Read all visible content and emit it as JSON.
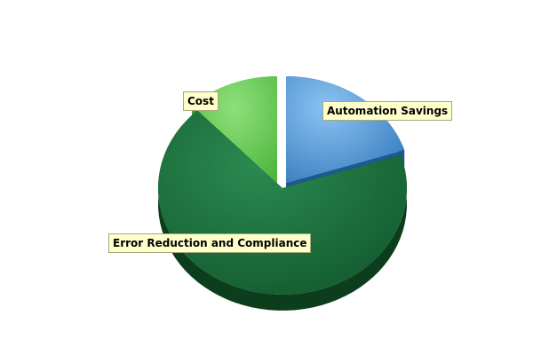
{
  "chart_data": {
    "type": "pie",
    "three_d": true,
    "exploded": true,
    "legend": "none",
    "slices": [
      {
        "label": "Automation Savings",
        "value": 20,
        "color": "#5b9bd5"
      },
      {
        "label": "Error Reduction and Compliance",
        "value": 68,
        "color": "#1d6b3c"
      },
      {
        "label": "Cost",
        "value": 12,
        "color": "#66cc55"
      }
    ]
  }
}
